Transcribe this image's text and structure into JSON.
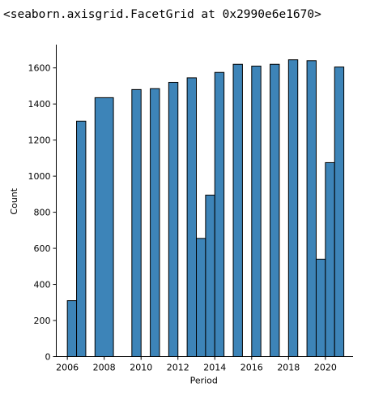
{
  "output": {
    "repr_text": "<seaborn.axisgrid.FacetGrid at 0x2990e6e1670>"
  },
  "chart_data": {
    "type": "bar",
    "xlabel": "Period",
    "ylabel": "Count",
    "xlim": [
      2005.4,
      2021.5
    ],
    "ylim": [
      0,
      1720
    ],
    "x_ticks": [
      2006,
      2008,
      2010,
      2012,
      2014,
      2016,
      2018,
      2020
    ],
    "x_tick_labels": [
      "2006",
      "2008",
      "2010",
      "2012",
      "2014",
      "2016",
      "2018",
      "2020"
    ],
    "y_ticks": [
      0,
      200,
      400,
      600,
      800,
      1000,
      1200,
      1400,
      1600
    ],
    "y_tick_labels": [
      "0",
      "200",
      "400",
      "600",
      "800",
      "1000",
      "1200",
      "1400",
      "1600"
    ],
    "bar_color": "#3d84b8",
    "bar_edge_color": "#000000",
    "bins": [
      {
        "x_start": 2006.0,
        "x_end": 2006.5,
        "count": 310
      },
      {
        "x_start": 2006.5,
        "x_end": 2007.0,
        "count": 1305
      },
      {
        "x_start": 2007.5,
        "x_end": 2008.5,
        "count": 1435
      },
      {
        "x_start": 2009.5,
        "x_end": 2010.0,
        "count": 1480
      },
      {
        "x_start": 2010.5,
        "x_end": 2011.0,
        "count": 1485
      },
      {
        "x_start": 2011.5,
        "x_end": 2012.0,
        "count": 1520
      },
      {
        "x_start": 2012.5,
        "x_end": 2013.0,
        "count": 1545
      },
      {
        "x_start": 2013.0,
        "x_end": 2013.5,
        "count": 655
      },
      {
        "x_start": 2013.5,
        "x_end": 2014.0,
        "count": 895
      },
      {
        "x_start": 2014.0,
        "x_end": 2014.5,
        "count": 1575
      },
      {
        "x_start": 2015.0,
        "x_end": 2015.5,
        "count": 1620
      },
      {
        "x_start": 2016.0,
        "x_end": 2016.5,
        "count": 1610
      },
      {
        "x_start": 2017.0,
        "x_end": 2017.5,
        "count": 1620
      },
      {
        "x_start": 2018.0,
        "x_end": 2018.5,
        "count": 1645
      },
      {
        "x_start": 2019.0,
        "x_end": 2019.5,
        "count": 1640
      },
      {
        "x_start": 2019.5,
        "x_end": 2020.0,
        "count": 540
      },
      {
        "x_start": 2020.0,
        "x_end": 2020.5,
        "count": 1075
      },
      {
        "x_start": 2020.5,
        "x_end": 2021.0,
        "count": 1605
      }
    ]
  }
}
